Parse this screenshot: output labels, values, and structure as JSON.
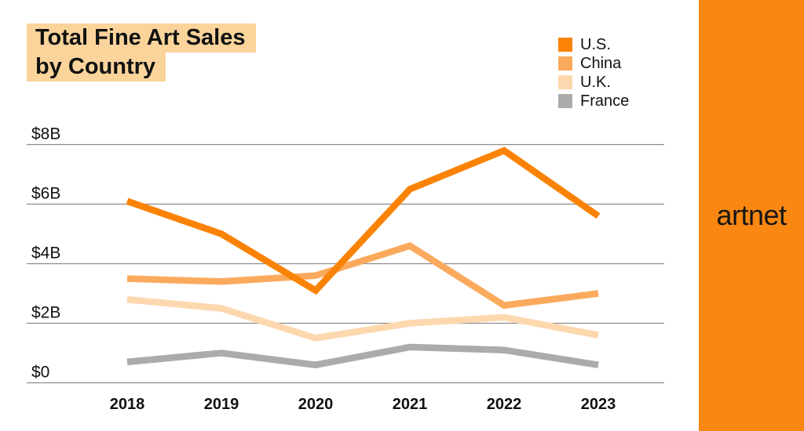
{
  "title": {
    "line1": "Total Fine Art Sales",
    "line2": "by Country",
    "highlight_color": "#FAD49B"
  },
  "sidebar": {
    "brand": "artnet",
    "color": "#F98712"
  },
  "chart_data": {
    "type": "line",
    "x": [
      "2018",
      "2019",
      "2020",
      "2021",
      "2022",
      "2023"
    ],
    "series": [
      {
        "name": "U.S.",
        "color": "#FA8306",
        "values": [
          6.1,
          5.0,
          3.1,
          6.5,
          7.8,
          5.6
        ]
      },
      {
        "name": "China",
        "color": "#FBAA5D",
        "values": [
          3.5,
          3.4,
          3.6,
          4.6,
          2.6,
          3.0
        ]
      },
      {
        "name": "U.K.",
        "color": "#FDD8AF",
        "values": [
          2.8,
          2.5,
          1.5,
          2.0,
          2.2,
          1.6
        ]
      },
      {
        "name": "France",
        "color": "#ABABAB",
        "values": [
          0.7,
          1.0,
          0.6,
          1.2,
          1.1,
          0.6
        ]
      }
    ],
    "y_ticks": [
      "$8B",
      "$6B",
      "$4B",
      "$2B",
      "$0"
    ],
    "y_tick_values": [
      8,
      6,
      4,
      2,
      0
    ],
    "ylim": [
      0,
      8.3
    ],
    "xlabel": "",
    "ylabel": "",
    "grid": true,
    "gridline_color": "#8C8C8C",
    "legend_position": "top-right"
  }
}
